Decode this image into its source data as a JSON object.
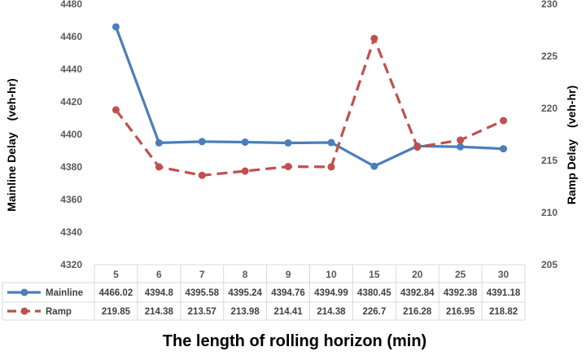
{
  "chart_data": {
    "type": "line",
    "categories": [
      "5",
      "6",
      "7",
      "8",
      "9",
      "10",
      "15",
      "20",
      "25",
      "30"
    ],
    "series": [
      {
        "name": "Mainline",
        "axis": "left",
        "color": "#4a7ebb",
        "dash": "solid",
        "values": [
          4466.02,
          4394.8,
          4395.58,
          4395.24,
          4394.76,
          4394.99,
          4380.45,
          4392.84,
          4392.38,
          4391.18
        ],
        "labels": [
          "4466.02",
          "4394.8",
          "4395.58",
          "4395.24",
          "4394.76",
          "4394.99",
          "4380.45",
          "4392.84",
          "4392.38",
          "4391.18"
        ]
      },
      {
        "name": "Ramp",
        "axis": "right",
        "color": "#c0504d",
        "dash": "dashed",
        "values": [
          219.85,
          214.38,
          213.57,
          213.98,
          214.41,
          214.38,
          226.7,
          216.28,
          216.95,
          218.82
        ],
        "labels": [
          "219.85",
          "214.38",
          "213.57",
          "213.98",
          "214.41",
          "214.38",
          "226.7",
          "216.28",
          "216.95",
          "218.82"
        ]
      }
    ],
    "ylabel": "Mainline Delay　(veh-hr)",
    "y2label": "Ramp Delay　(veh-hr)",
    "xlabel": "The length of rolling horizon (min)",
    "ylim": [
      4320,
      4480
    ],
    "yticks": [
      "4320",
      "4340",
      "4360",
      "4380",
      "4400",
      "4420",
      "4440",
      "4460",
      "4480"
    ],
    "y2lim": [
      205,
      230
    ],
    "y2ticks": [
      "205",
      "210",
      "215",
      "220",
      "225",
      "230"
    ],
    "grid": false,
    "legend": "data-table"
  }
}
